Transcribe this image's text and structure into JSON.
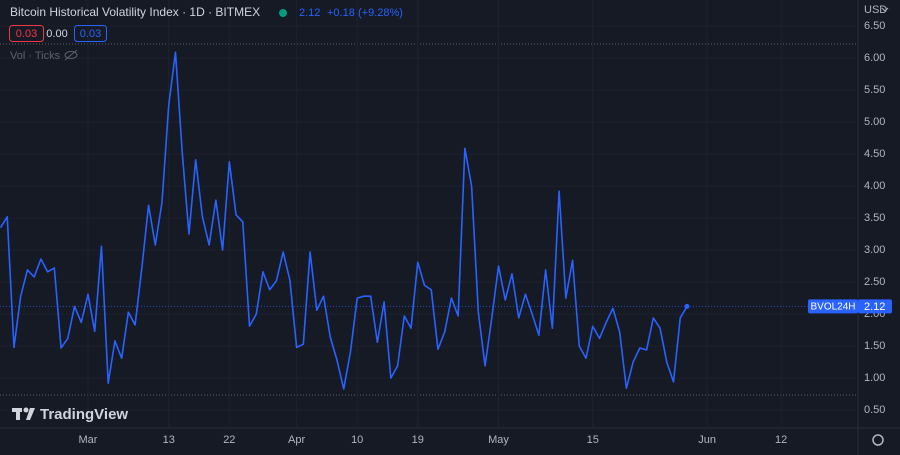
{
  "header": {
    "title": "Bitcoin Historical Volatility Index · 1D · BITMEX",
    "change": "+0.18",
    "change_pct": "(+9.28%)",
    "ohlc": [
      "0.03",
      "0.00",
      "0.03"
    ],
    "indicators": "Vol · Ticks",
    "currency": "USD",
    "brand": "TradingView"
  },
  "chart_data": {
    "type": "line",
    "categories": [
      null,
      null,
      null,
      null,
      null,
      null,
      null,
      null,
      null,
      null,
      null,
      null,
      null,
      "Mar",
      null,
      null,
      null,
      null,
      null,
      null,
      null,
      null,
      null,
      null,
      null,
      "13",
      null,
      null,
      null,
      null,
      null,
      null,
      null,
      null,
      "22",
      null,
      null,
      null,
      null,
      null,
      null,
      null,
      null,
      null,
      "Apr",
      null,
      null,
      null,
      null,
      null,
      null,
      null,
      null,
      "10",
      null,
      null,
      null,
      null,
      null,
      null,
      null,
      null,
      "19",
      null,
      null,
      null,
      null,
      null,
      null,
      null,
      null,
      null,
      null,
      null,
      "May",
      null,
      null,
      null,
      null,
      null,
      null,
      null,
      null,
      null,
      null,
      null,
      null,
      null,
      "15",
      null,
      null,
      null,
      null,
      null,
      null,
      null,
      null,
      null,
      null,
      null,
      null,
      null,
      null,
      null,
      null,
      "Jun",
      null,
      null,
      null,
      null,
      null,
      null,
      null,
      null,
      null,
      null,
      "12",
      null,
      null,
      null,
      null,
      null,
      null,
      null,
      null,
      null,
      null,
      null
    ],
    "series": [
      {
        "name": "BVOL24H",
        "color": "#2962ff",
        "values": [
          3.35,
          3.52,
          1.48,
          2.28,
          2.69,
          2.58,
          2.86,
          2.66,
          2.72,
          1.47,
          1.62,
          2.12,
          1.87,
          2.31,
          1.73,
          3.06,
          0.92,
          1.58,
          1.31,
          2.03,
          1.83,
          2.72,
          3.7,
          3.08,
          3.75,
          5.27,
          6.09,
          4.53,
          3.25,
          4.41,
          3.52,
          3.08,
          3.78,
          3,
          4.38,
          3.55,
          3.44,
          1.81,
          2,
          2.66,
          2.38,
          2.52,
          2.97,
          2.53,
          1.48,
          1.53,
          2.97,
          2.06,
          2.28,
          1.64,
          1.28,
          0.83,
          1.41,
          2.25,
          2.28,
          2.28,
          1.56,
          2.19,
          1,
          1.19,
          1.97,
          1.78,
          2.81,
          2.45,
          2.38,
          1.45,
          1.72,
          2.25,
          1.97,
          4.59,
          4,
          2.03,
          1.19,
          1.94,
          2.75,
          2.22,
          2.63,
          1.94,
          2.31,
          2,
          1.67,
          2.69,
          1.78,
          3.92,
          2.25,
          2.84,
          1.5,
          1.31,
          1.81,
          1.62,
          1.87,
          2.09,
          1.72,
          0.84,
          1.25,
          1.47,
          1.44,
          1.94,
          1.78,
          1.25,
          0.94,
          1.94,
          2.12,
          null,
          null,
          null,
          null,
          null,
          null,
          null,
          null,
          null,
          null,
          null,
          null,
          null,
          null,
          null,
          null,
          null,
          null,
          null,
          null,
          null,
          null,
          null,
          null,
          null
        ]
      }
    ],
    "ylim": [
      0.22,
      6.9
    ],
    "yticks": [
      {
        "value": 0.5,
        "label": "0.50"
      },
      {
        "value": 1,
        "label": "1.00"
      },
      {
        "value": 1.5,
        "label": "1.50"
      },
      {
        "value": 2,
        "label": "2.00"
      },
      {
        "value": 2.5,
        "label": "2.50"
      },
      {
        "value": 3,
        "label": "3.00"
      },
      {
        "value": 3.5,
        "label": "3.50"
      },
      {
        "value": 4,
        "label": "4.00"
      },
      {
        "value": 4.5,
        "label": "4.50"
      },
      {
        "value": 5,
        "label": "5.00"
      },
      {
        "value": 5.5,
        "label": "5.50"
      },
      {
        "value": 6,
        "label": "6.00"
      },
      {
        "value": 6.5,
        "label": "6.50"
      }
    ],
    "grid": true
  }
}
